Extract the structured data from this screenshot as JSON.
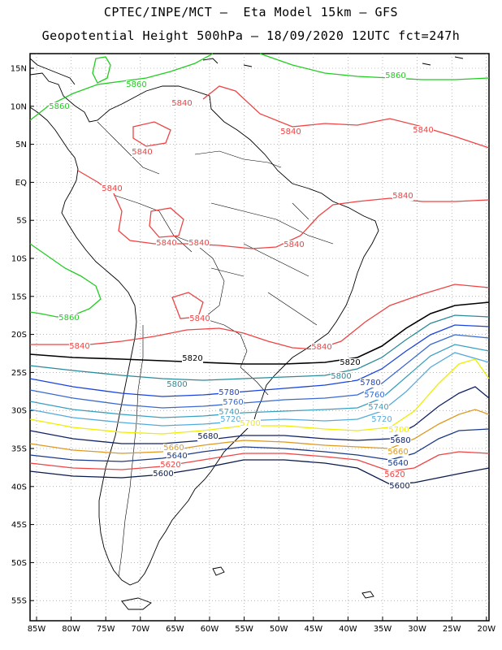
{
  "title_line1": "CPTEC/INPE/MCT –  Eta Model 15km – GFS",
  "title_line2": "Geopotential Height 500hPa – 18/09/2020 12UTC fct=247h",
  "lat_ticks": [
    "15N",
    "10N",
    "5N",
    "EQ",
    "5S",
    "10S",
    "15S",
    "20S",
    "25S",
    "30S",
    "35S",
    "40S",
    "45S",
    "50S",
    "55S"
  ],
  "lon_ticks": [
    "85W",
    "80W",
    "75W",
    "70W",
    "65W",
    "60W",
    "55W",
    "50W",
    "45W",
    "40W",
    "35W",
    "30W",
    "25W",
    "20W"
  ],
  "colors": {
    "c5860": "#22cc22",
    "c5840": "#ee4444",
    "c5820": "#000000",
    "c5800": "#2a8a9a",
    "c5780": "#1a44dd",
    "c5760": "#3a6ad0",
    "c5740": "#3aa0c0",
    "c5720": "#55aadd",
    "c5700": "#eeee00",
    "c5680": "#112266",
    "c5660": "#dd9922",
    "c5640": "#1a3a8a",
    "c5620": "#ee4444",
    "c5600": "#0a1a4a"
  },
  "contour_labels": [
    {
      "text": "5860",
      "color": "#22cc22"
    },
    {
      "text": "5860",
      "color": "#22cc22"
    },
    {
      "text": "5860",
      "color": "#22cc22"
    },
    {
      "text": "5860",
      "color": "#22cc22"
    },
    {
      "text": "5840",
      "color": "#ee4444"
    },
    {
      "text": "5840",
      "color": "#ee4444"
    },
    {
      "text": "5840",
      "color": "#ee4444"
    },
    {
      "text": "5840",
      "color": "#ee4444"
    },
    {
      "text": "5840",
      "color": "#ee4444"
    },
    {
      "text": "5840",
      "color": "#ee4444"
    },
    {
      "text": "5840",
      "color": "#ee4444"
    },
    {
      "text": "5840",
      "color": "#ee4444"
    },
    {
      "text": "5840",
      "color": "#ee4444"
    },
    {
      "text": "5840",
      "color": "#ee4444"
    },
    {
      "text": "5840",
      "color": "#ee4444"
    },
    {
      "text": "5840",
      "color": "#ee4444"
    },
    {
      "text": "5820",
      "color": "#000000"
    },
    {
      "text": "5820",
      "color": "#000000"
    },
    {
      "text": "5800",
      "color": "#2a8a9a"
    },
    {
      "text": "5800",
      "color": "#2a8a9a"
    },
    {
      "text": "5780",
      "color": "#1a44dd"
    },
    {
      "text": "5780",
      "color": "#1a44dd"
    },
    {
      "text": "5760",
      "color": "#3a6ad0"
    },
    {
      "text": "5760",
      "color": "#3a6ad0"
    },
    {
      "text": "5740",
      "color": "#3aa0c0"
    },
    {
      "text": "5740",
      "color": "#3aa0c0"
    },
    {
      "text": "5720",
      "color": "#55aadd"
    },
    {
      "text": "5720",
      "color": "#55aadd"
    },
    {
      "text": "5700",
      "color": "#eeee00"
    },
    {
      "text": "5700",
      "color": "#eeee00"
    },
    {
      "text": "5680",
      "color": "#112266"
    },
    {
      "text": "5680",
      "color": "#112266"
    },
    {
      "text": "5660",
      "color": "#dd9922"
    },
    {
      "text": "5660",
      "color": "#dd9922"
    },
    {
      "text": "5640",
      "color": "#1a3a8a"
    },
    {
      "text": "5640",
      "color": "#1a3a8a"
    },
    {
      "text": "5620",
      "color": "#ee4444"
    },
    {
      "text": "5620",
      "color": "#ee4444"
    },
    {
      "text": "5600",
      "color": "#0a1a4a"
    },
    {
      "text": "5600",
      "color": "#0a1a4a"
    }
  ]
}
